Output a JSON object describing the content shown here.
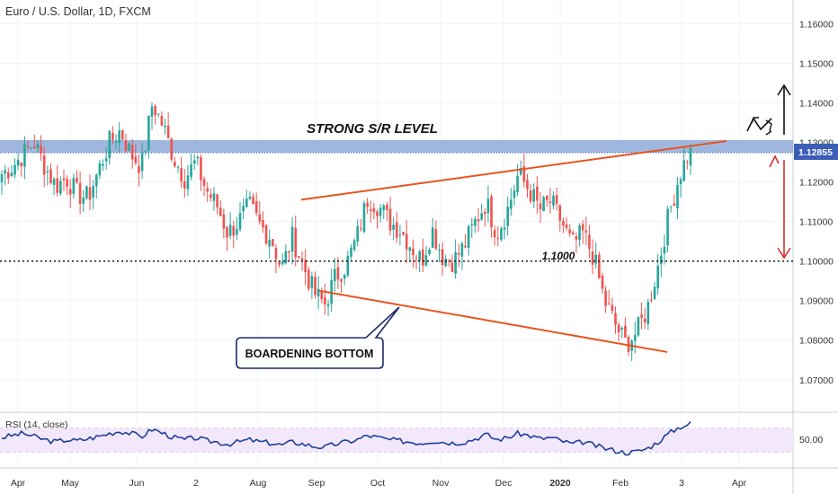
{
  "header": {
    "title": "Euro / U.S. Dollar, 1D, FXCM"
  },
  "rsi_panel": {
    "label": "RSI (14, close)",
    "value_label": "50.00"
  },
  "annotations": {
    "sr_label": "STRONG S/R LEVEL",
    "level_label": "1.1000",
    "callout": "BOARDENING BOTTOM",
    "price_tag": "1.12855"
  },
  "colors": {
    "up": "#26a69a",
    "down": "#ef5350",
    "trendline": "#e8541e",
    "sr_zone": "#7f9fd3",
    "rsi_line": "#1c3f9a",
    "rsi_band": "#f3e8fb",
    "price_tag_bg": "#3d5eb7"
  },
  "chart_data": [
    {
      "type": "candlestick",
      "ylim": [
        1.062,
        1.166
      ],
      "y_ticks": [
        1.16,
        1.15,
        1.14,
        1.13,
        1.12,
        1.11,
        1.1,
        1.09,
        1.08,
        1.07
      ],
      "y_tick_labels": [
        "1.16000",
        "1.15000",
        "1.14000",
        "1.13000",
        "1.12000",
        "1.11000",
        "1.10000",
        "1.09000",
        "1.08000",
        "1.07000"
      ],
      "x_labels": [
        "Apr",
        "May",
        "Jun",
        "2",
        "Aug",
        "Sep",
        "Oct",
        "Nov",
        "Dec",
        "2020",
        "Feb",
        "3",
        "Apr"
      ],
      "close_path": [
        [
          "2019-04-01",
          1.122
        ],
        [
          "2019-04-08",
          1.124
        ],
        [
          "2019-04-16",
          1.127
        ],
        [
          "2019-04-23",
          1.13
        ],
        [
          "2019-04-30",
          1.124
        ],
        [
          "2019-05-08",
          1.119
        ],
        [
          "2019-05-16",
          1.121
        ],
        [
          "2019-05-24",
          1.117
        ],
        [
          "2019-05-31",
          1.116
        ],
        [
          "2019-06-07",
          1.123
        ],
        [
          "2019-06-14",
          1.13
        ],
        [
          "2019-06-21",
          1.133
        ],
        [
          "2019-06-28",
          1.127
        ],
        [
          "2019-07-05",
          1.124
        ],
        [
          "2019-07-12",
          1.14
        ],
        [
          "2019-07-19",
          1.134
        ],
        [
          "2019-07-26",
          1.126
        ],
        [
          "2019-08-02",
          1.121
        ],
        [
          "2019-08-09",
          1.125
        ],
        [
          "2019-08-16",
          1.118
        ],
        [
          "2019-08-23",
          1.114
        ],
        [
          "2019-08-30",
          1.107
        ],
        [
          "2019-09-06",
          1.11
        ],
        [
          "2019-09-13",
          1.114
        ],
        [
          "2019-09-20",
          1.109
        ],
        [
          "2019-09-27",
          1.106
        ],
        [
          "2019-10-04",
          1.098
        ],
        [
          "2019-10-11",
          1.106
        ],
        [
          "2019-10-18",
          1.099
        ],
        [
          "2019-10-25",
          1.092
        ],
        [
          "2019-11-01",
          1.089
        ],
        [
          "2019-11-08",
          1.096
        ],
        [
          "2019-11-15",
          1.099
        ],
        [
          "2019-11-22",
          1.106
        ],
        [
          "2019-11-29",
          1.116
        ],
        [
          "2019-12-06",
          1.114
        ],
        [
          "2019-12-13",
          1.11
        ],
        [
          "2019-12-20",
          1.108
        ],
        [
          "2019-12-27",
          1.104
        ],
        [
          "2020-01-03",
          1.1
        ],
        [
          "2020-01-10",
          1.108
        ],
        [
          "2020-01-17",
          1.101
        ],
        [
          "2020-01-24",
          1.1
        ],
        [
          "2020-01-31",
          1.104
        ],
        [
          "2020-02-07",
          1.11
        ],
        [
          "2020-02-14",
          1.115
        ],
        [
          "2020-02-21",
          1.107
        ],
        [
          "2020-02-28",
          1.113
        ],
        [
          "2020-03-06",
          1.122
        ],
        [
          "2020-03-13",
          1.118
        ],
        [
          "2020-03-20",
          1.113
        ],
        [
          "2020-03-27",
          1.115
        ],
        [
          "2020-04-03",
          1.11
        ],
        [
          "2020-04-10",
          1.104
        ],
        [
          "2020-04-17",
          1.107
        ],
        [
          "2020-04-24",
          1.101
        ],
        [
          "2020-05-01",
          1.09
        ],
        [
          "2020-05-08",
          1.084
        ],
        [
          "2020-05-15",
          1.079
        ],
        [
          "2020-05-22",
          1.082
        ],
        [
          "2020-05-29",
          1.088
        ],
        [
          "2020-06-05",
          1.099
        ],
        [
          "2020-06-12",
          1.112
        ],
        [
          "2020-06-19",
          1.122
        ],
        [
          "2020-06-26",
          1.1285
        ]
      ],
      "sr_zone": [
        1.128,
        1.13
      ],
      "horizontal_level": 1.1,
      "broadening_upper": [
        1.1155,
        1.13
      ],
      "broadening_lower": [
        1.0925,
        1.077
      ],
      "last_price": 1.12855
    },
    {
      "type": "line",
      "name": "RSI (14, close)",
      "y_level": 50,
      "values": [
        54,
        56,
        58,
        55,
        52,
        50,
        52,
        51,
        53,
        55,
        58,
        60,
        58,
        55,
        62,
        58,
        54,
        52,
        54,
        51,
        50,
        48,
        50,
        52,
        50,
        49,
        47,
        50,
        48,
        46,
        45,
        48,
        50,
        52,
        56,
        54,
        52,
        51,
        50,
        49,
        51,
        50,
        49,
        50,
        53,
        57,
        52,
        54,
        58,
        56,
        53,
        54,
        51,
        48,
        50,
        47,
        44,
        42,
        40,
        41,
        44,
        50,
        58,
        64,
        67
      ]
    }
  ]
}
